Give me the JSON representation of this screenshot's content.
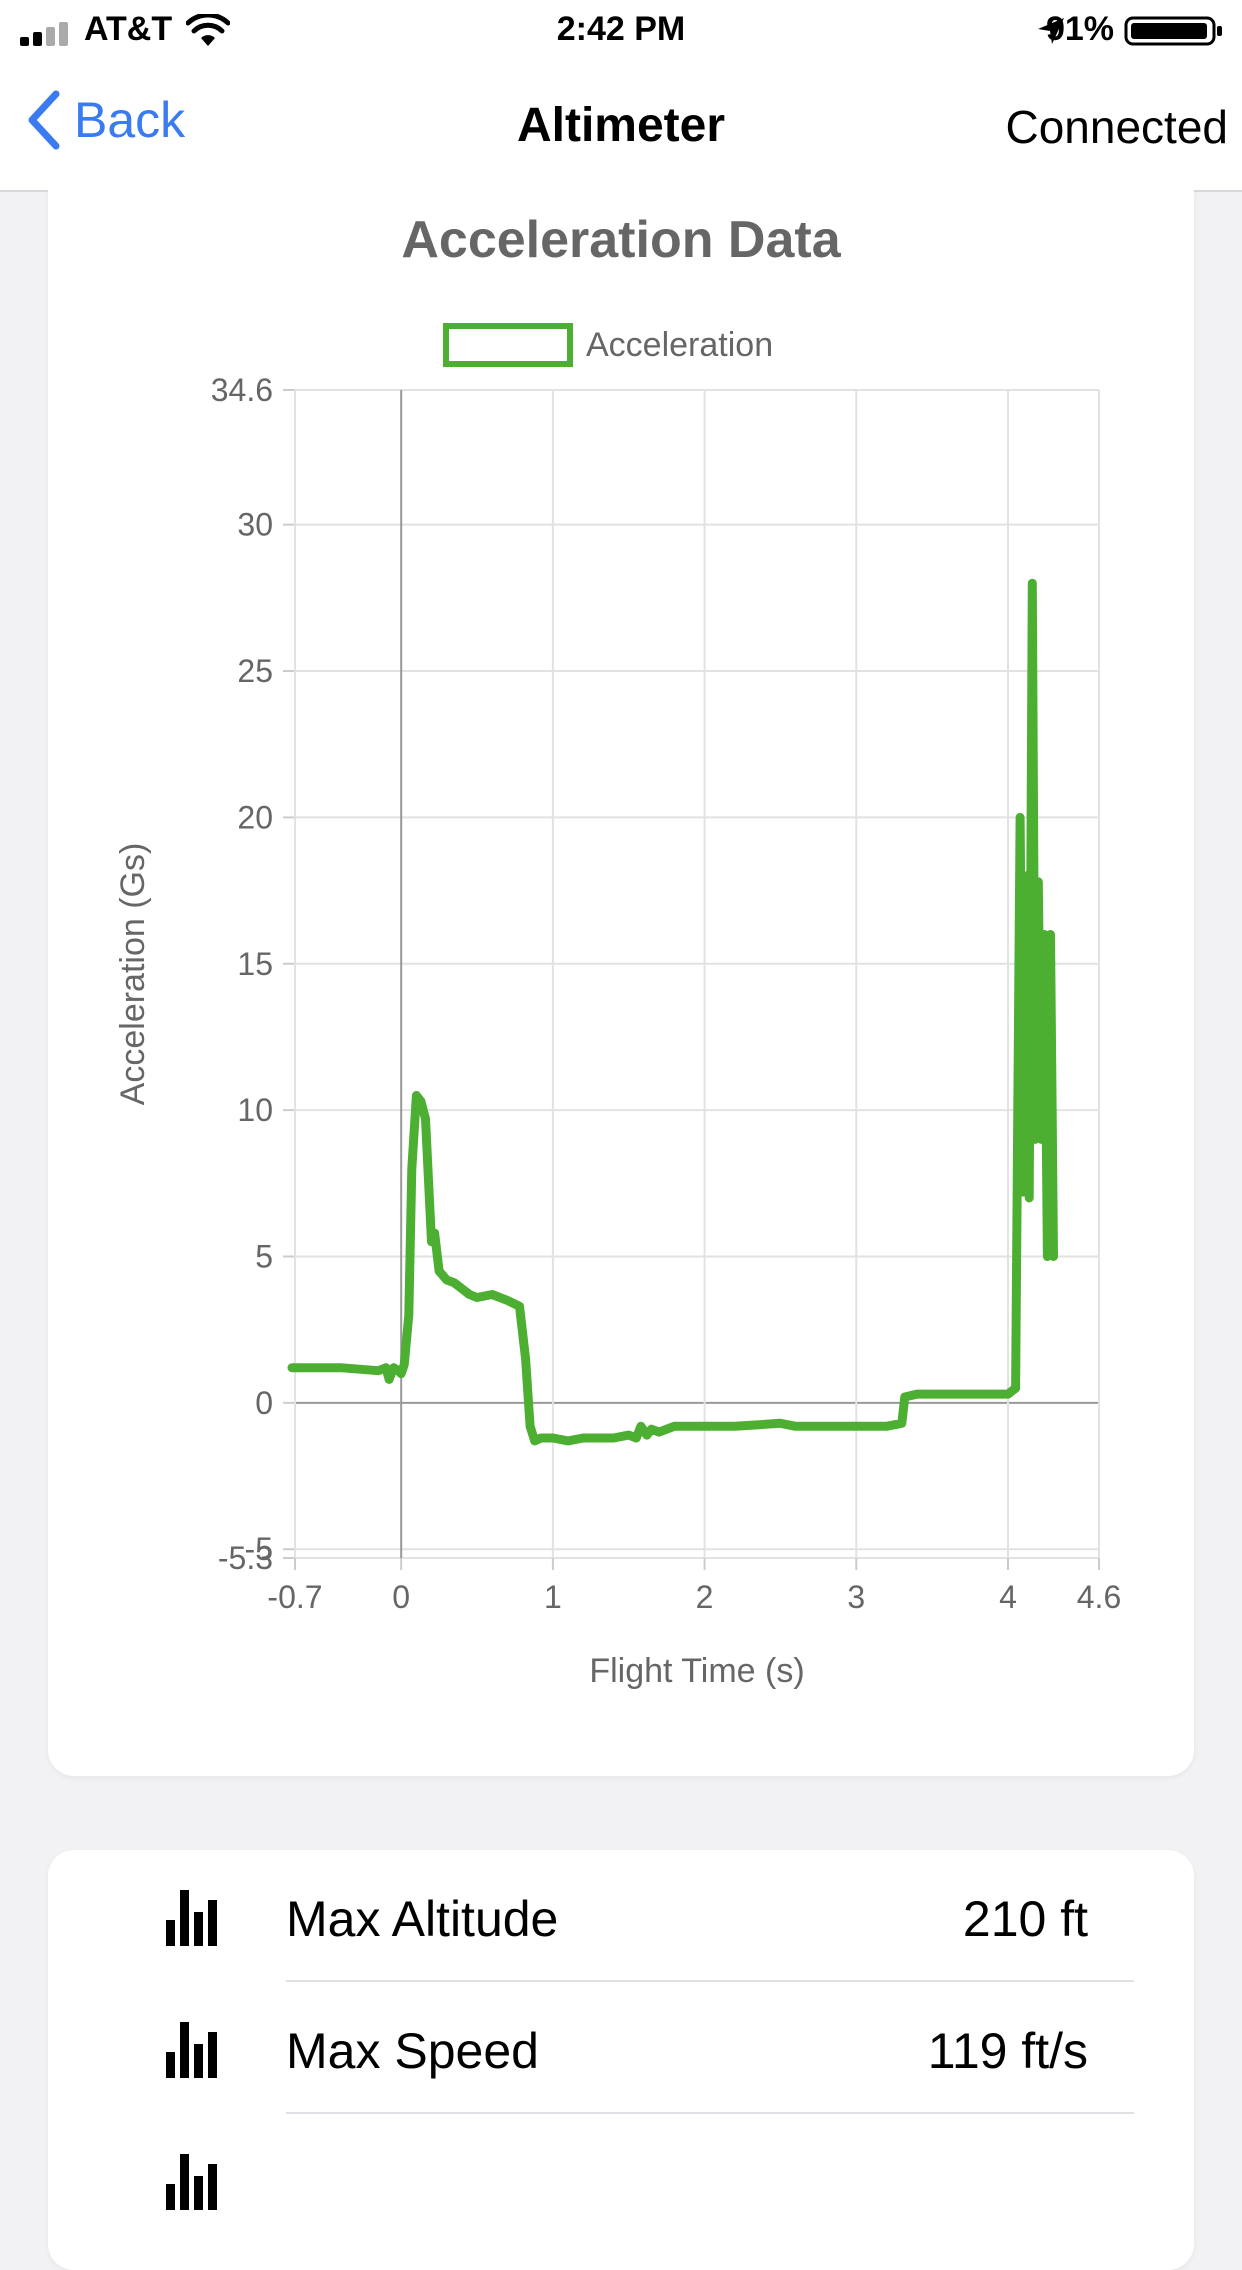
{
  "status_bar": {
    "carrier": "AT&T",
    "time": "2:42 PM",
    "battery": "91%",
    "icons": [
      "signal-icon",
      "wifi-icon",
      "location-arrow-icon",
      "battery-icon"
    ]
  },
  "nav": {
    "back_label": "Back",
    "title": "Altimeter",
    "status": "Connected",
    "accent_color": "#3a7bf0"
  },
  "chart_data": {
    "type": "line",
    "title": "Acceleration Data",
    "xlabel": "Flight Time (s)",
    "ylabel": "Acceleration (Gs)",
    "xlim": [
      -0.7,
      4.6
    ],
    "ylim": [
      -5.3,
      34.6
    ],
    "x_ticks": [
      "-0.7",
      "0",
      "1",
      "2",
      "3",
      "4",
      "4.6"
    ],
    "y_ticks": [
      "34.6",
      "30",
      "25",
      "20",
      "15",
      "10",
      "5",
      "0",
      "-5",
      "-5.3"
    ],
    "grid": true,
    "legend_position": "top",
    "series": [
      {
        "name": "Acceleration",
        "color": "#4caf31",
        "x": [
          -0.72,
          -0.4,
          -0.15,
          -0.1,
          -0.08,
          -0.05,
          -0.02,
          0.0,
          0.02,
          0.05,
          0.07,
          0.1,
          0.13,
          0.16,
          0.2,
          0.22,
          0.25,
          0.3,
          0.35,
          0.4,
          0.45,
          0.5,
          0.6,
          0.7,
          0.78,
          0.82,
          0.85,
          0.88,
          0.92,
          1.0,
          1.1,
          1.2,
          1.3,
          1.4,
          1.5,
          1.55,
          1.58,
          1.62,
          1.65,
          1.7,
          1.75,
          1.8,
          1.9,
          2.0,
          2.2,
          2.5,
          2.6,
          2.8,
          3.0,
          3.2,
          3.3,
          3.32,
          3.4,
          3.6,
          3.8,
          4.0,
          4.05,
          4.08,
          4.1,
          4.12,
          4.14,
          4.16,
          4.18,
          4.2,
          4.22,
          4.24,
          4.26,
          4.28,
          4.3
        ],
        "values": [
          1.2,
          1.2,
          1.1,
          1.2,
          0.8,
          1.2,
          1.1,
          1.0,
          1.3,
          3.0,
          8.0,
          10.5,
          10.3,
          9.7,
          5.5,
          5.8,
          4.5,
          4.2,
          4.1,
          3.9,
          3.7,
          3.6,
          3.7,
          3.5,
          3.3,
          1.5,
          -0.8,
          -1.3,
          -1.2,
          -1.2,
          -1.3,
          -1.2,
          -1.2,
          -1.2,
          -1.1,
          -1.2,
          -0.8,
          -1.1,
          -0.9,
          -1.0,
          -0.9,
          -0.8,
          -0.8,
          -0.8,
          -0.8,
          -0.7,
          -0.8,
          -0.8,
          -0.8,
          -0.8,
          -0.7,
          0.2,
          0.3,
          0.3,
          0.3,
          0.3,
          0.5,
          20.0,
          7.2,
          18.0,
          7.0,
          28.0,
          9.0,
          17.8,
          9.0,
          16.0,
          5.0,
          16.0,
          5.0
        ]
      }
    ]
  },
  "stats": [
    {
      "label": "Max Altitude",
      "value": "210 ft",
      "icon": "bar-chart-icon"
    },
    {
      "label": "Max Speed",
      "value": "119 ft/s",
      "icon": "bar-chart-icon"
    }
  ]
}
